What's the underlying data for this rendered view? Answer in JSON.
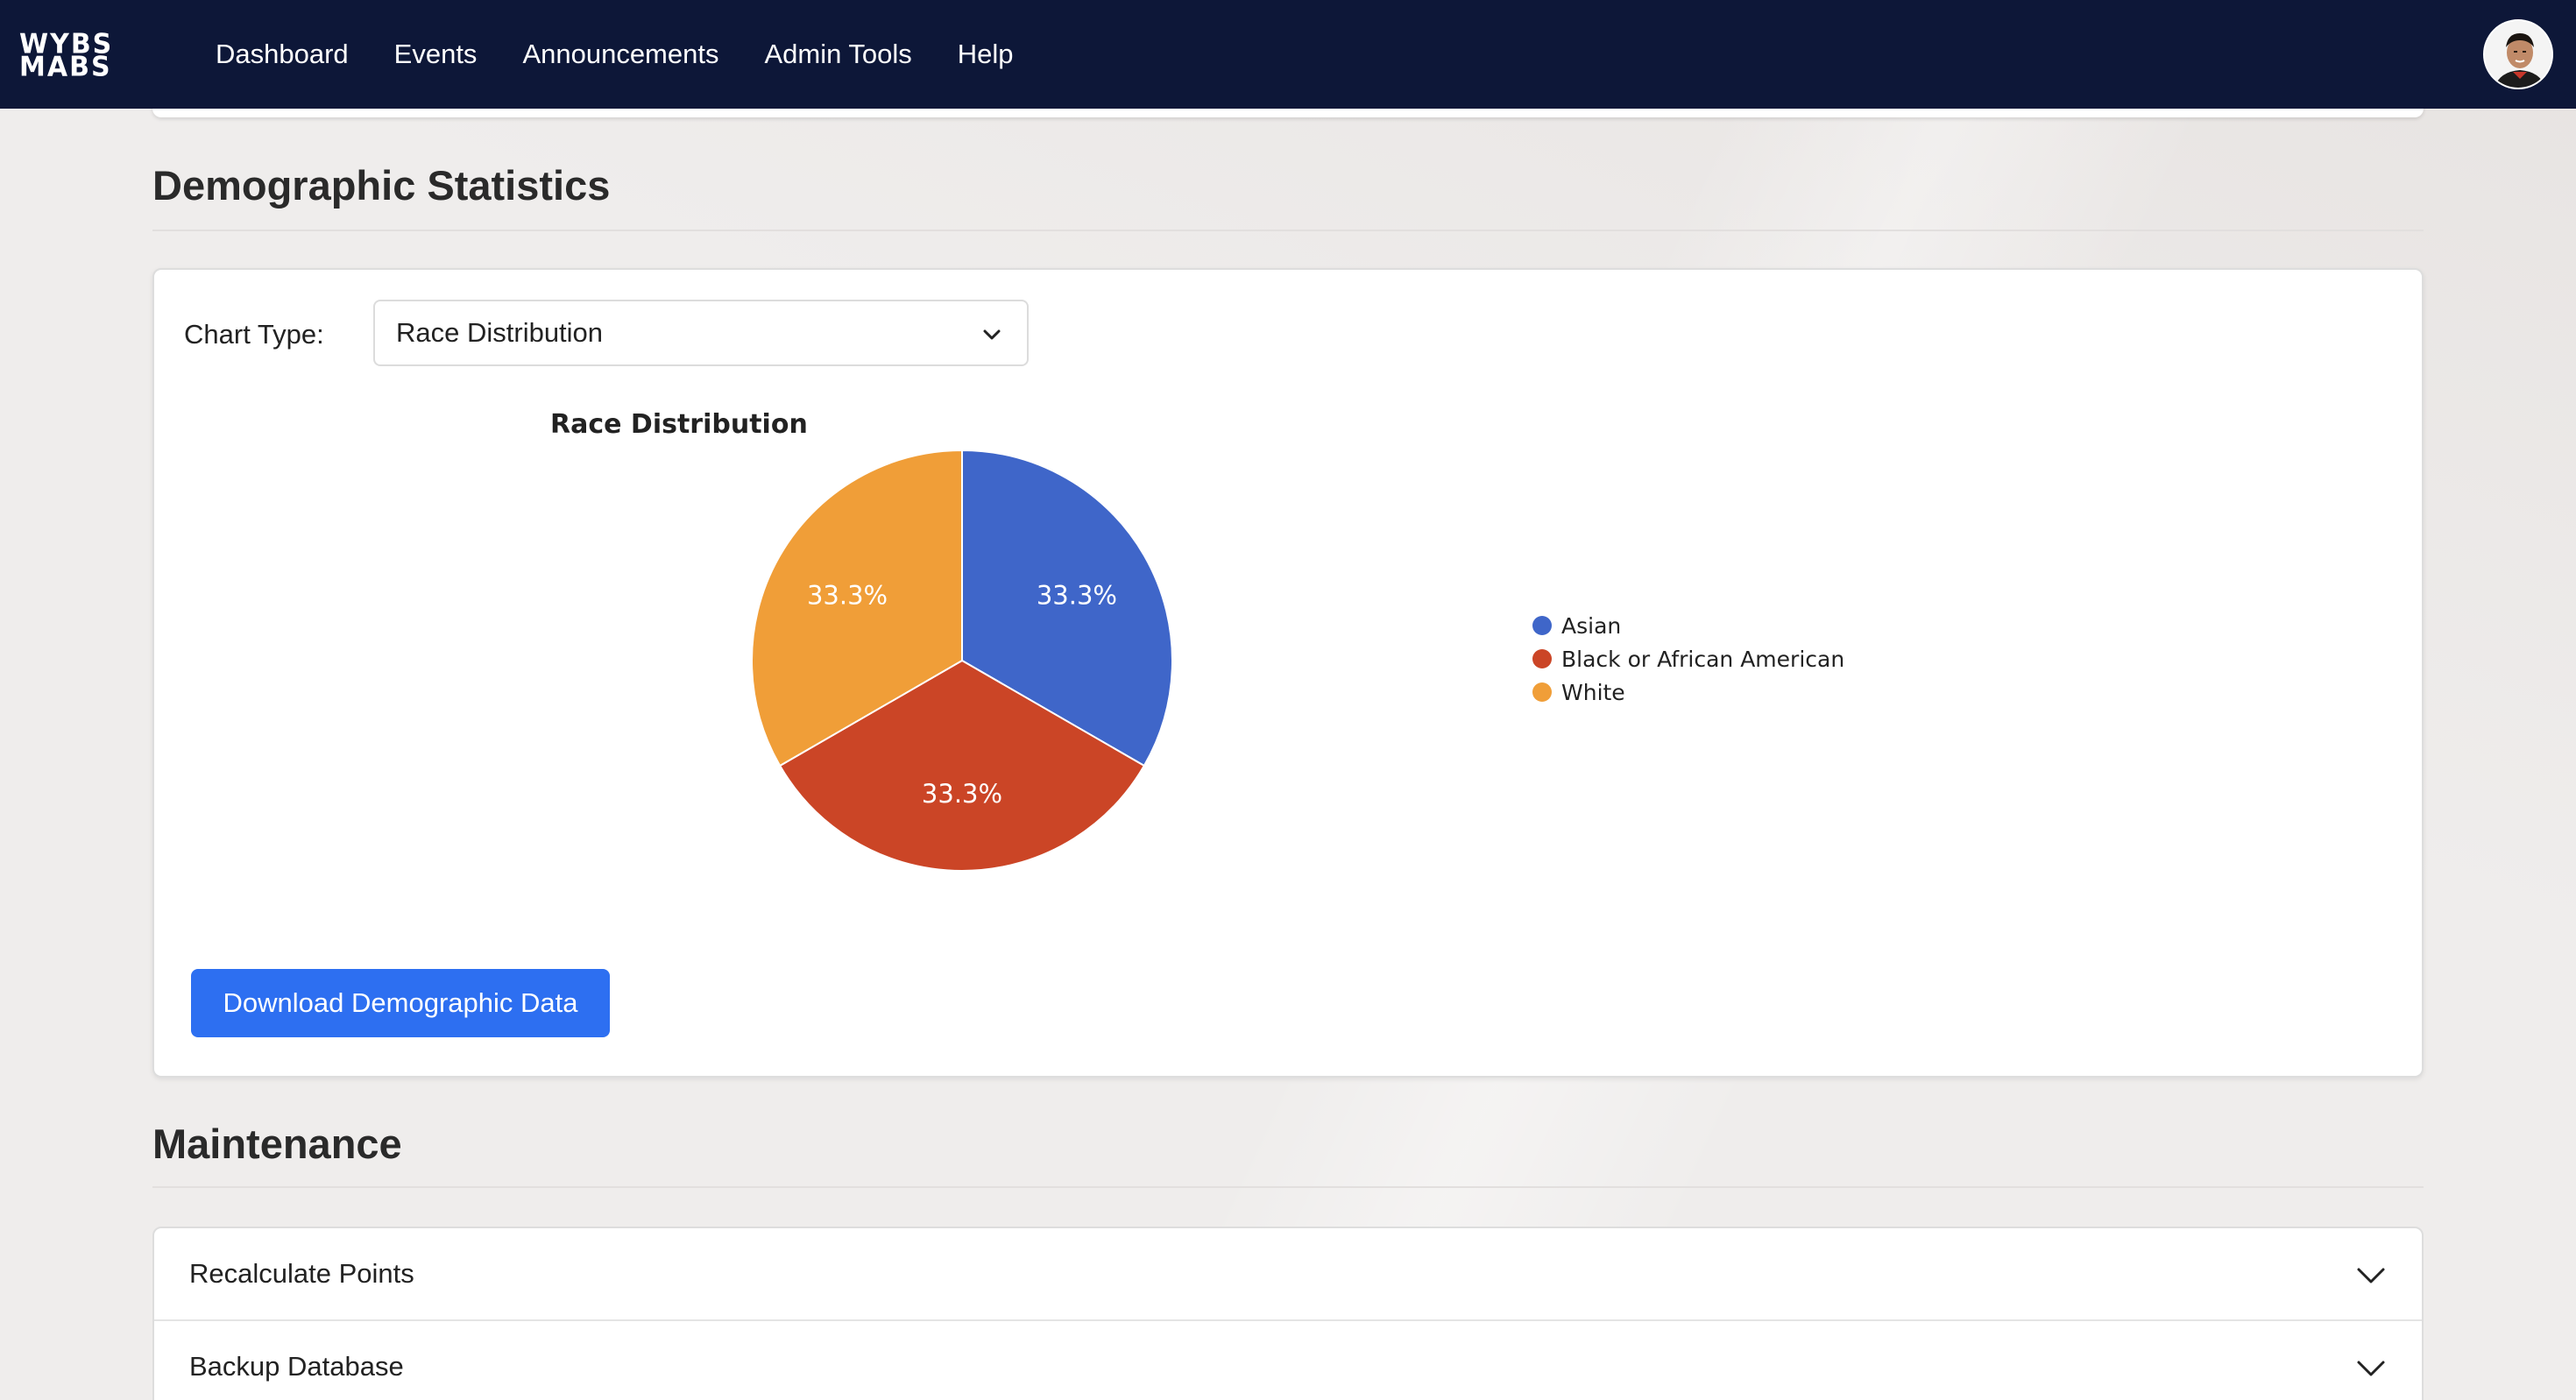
{
  "nav": {
    "logo_line1": "WYBS",
    "logo_line2": "MABS",
    "links": [
      "Dashboard",
      "Events",
      "Announcements",
      "Admin Tools",
      "Help"
    ]
  },
  "demographics": {
    "title": "Demographic Statistics",
    "chart_type_label": "Chart Type:",
    "chart_type_selected": "Race Distribution",
    "download_label": "Download Demographic Data"
  },
  "chart_data": {
    "type": "pie",
    "title": "Race Distribution",
    "categories": [
      "Asian",
      "Black or African American",
      "White"
    ],
    "values": [
      33.3,
      33.3,
      33.3
    ],
    "labels": [
      "33.3%",
      "33.3%",
      "33.3%"
    ],
    "colors": [
      "#3f66c9",
      "#cb4526",
      "#f09e38"
    ],
    "legend_position": "right"
  },
  "maintenance": {
    "title": "Maintenance",
    "items": [
      "Recalculate Points",
      "Backup Database"
    ]
  }
}
